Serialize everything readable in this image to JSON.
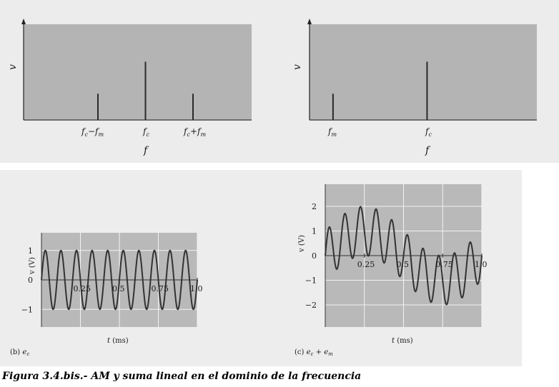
{
  "caption": "Figura 3.4.bis.- AM y suma lineal en el dominio de la frecuencia",
  "chart_data": [
    {
      "id": "spectrum-am",
      "type": "bar",
      "ylabel": "v",
      "xlabel": "f",
      "categories": [
        "fc−fm",
        "fc",
        "fc+fm"
      ],
      "x_positions": [
        0.61,
        1.0,
        1.39
      ],
      "values": [
        0.45,
        1.0,
        0.45
      ],
      "xlim": [
        0,
        2
      ],
      "ylim": [
        0,
        1.63
      ]
    },
    {
      "id": "spectrum-sum",
      "type": "bar",
      "ylabel": "v",
      "xlabel": "f",
      "categories": [
        "fm",
        "fc"
      ],
      "x_positions": [
        0.2,
        1.0
      ],
      "values": [
        0.45,
        1.0
      ],
      "xlim": [
        0,
        1.8
      ],
      "ylim": [
        0,
        1.63
      ]
    },
    {
      "id": "waveform-ec",
      "type": "line",
      "panel_label": "(b) e",
      "panel_sub": "c",
      "xlabel": "t (ms)",
      "ylabel": "v (V)",
      "xticks": [
        "0.25",
        "0.5",
        "0.75",
        "1.0"
      ],
      "yticks": [
        "1",
        "0",
        "−1"
      ],
      "xlim": [
        0,
        1.0
      ],
      "ylim": [
        -1.6,
        1.6
      ],
      "series": [
        {
          "formula": "sin(2π·10·t)",
          "carrier_cycles_per_ms": 10,
          "amplitude": 1
        }
      ]
    },
    {
      "id": "waveform-sum",
      "type": "line",
      "panel_label": "(c) e",
      "panel_sub_c": "c",
      "panel_plus": " + e",
      "panel_sub_m": "m",
      "xlabel": "t (ms)",
      "ylabel": "v (V)",
      "xticks": [
        "0.25",
        "0.5",
        "0.75",
        "1.0"
      ],
      "yticks": [
        "2",
        "1",
        "0",
        "−1",
        "−2"
      ],
      "xlim": [
        0,
        1.0
      ],
      "ylim": [
        -2.9,
        2.9
      ],
      "series": [
        {
          "formula": "sin(2π·10·t) + sin(2π·1·t)",
          "carrier_cycles_per_ms": 10,
          "message_cycles_per_ms": 1,
          "amplitude": 1
        }
      ]
    }
  ]
}
